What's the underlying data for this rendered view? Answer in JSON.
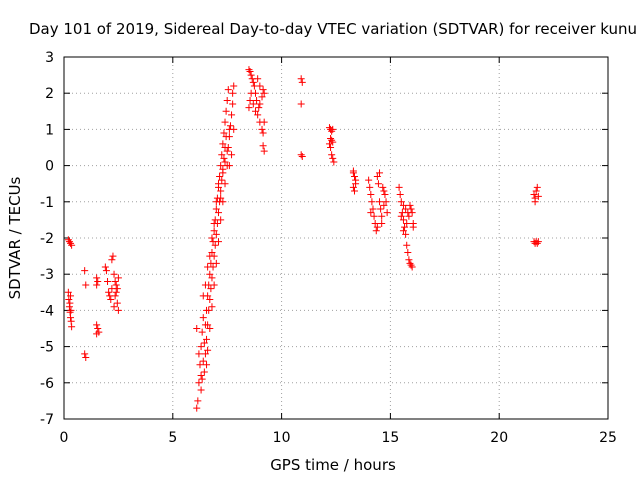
{
  "chart_data": {
    "type": "scatter",
    "title": "Day 101 of 2019, Sidereal Day-to-day VTEC variation (SDTVAR) for receiver kunu",
    "xlabel": "GPS time / hours",
    "ylabel": "SDTVAR / TECUs",
    "xlim": [
      0,
      25
    ],
    "ylim": [
      -7,
      3
    ],
    "xticks": [
      "0",
      "5",
      "10",
      "15",
      "20",
      "25"
    ],
    "yticks": [
      "-7",
      "-6",
      "-5",
      "-4",
      "-3",
      "-2",
      "-1",
      "0",
      "1",
      "2",
      "3"
    ],
    "grid": true,
    "marker": "plus",
    "color": "#ff0000",
    "series": [
      {
        "name": "SDTVAR",
        "points": [
          [
            0.2,
            -2.05
          ],
          [
            0.25,
            -2.1
          ],
          [
            0.3,
            -2.15
          ],
          [
            0.35,
            -2.2
          ],
          [
            0.2,
            -3.5
          ],
          [
            0.22,
            -3.7
          ],
          [
            0.25,
            -3.9
          ],
          [
            0.28,
            -4.05
          ],
          [
            0.3,
            -4.2
          ],
          [
            0.33,
            -4.3
          ],
          [
            0.35,
            -4.45
          ],
          [
            0.3,
            -3.6
          ],
          [
            0.27,
            -3.8
          ],
          [
            0.32,
            -4.0
          ],
          [
            0.95,
            -2.9
          ],
          [
            1.0,
            -3.3
          ],
          [
            0.95,
            -5.2
          ],
          [
            1.0,
            -5.3
          ],
          [
            1.5,
            -3.1
          ],
          [
            1.55,
            -3.2
          ],
          [
            1.5,
            -3.3
          ],
          [
            1.5,
            -4.4
          ],
          [
            1.55,
            -4.5
          ],
          [
            1.6,
            -4.6
          ],
          [
            1.5,
            -4.65
          ],
          [
            1.9,
            -2.8
          ],
          [
            1.95,
            -2.9
          ],
          [
            2.0,
            -3.2
          ],
          [
            2.05,
            -3.5
          ],
          [
            2.1,
            -3.6
          ],
          [
            2.15,
            -3.7
          ],
          [
            2.2,
            -3.4
          ],
          [
            2.2,
            -2.6
          ],
          [
            2.25,
            -2.5
          ],
          [
            2.3,
            -3.0
          ],
          [
            2.35,
            -3.2
          ],
          [
            2.4,
            -3.5
          ],
          [
            2.45,
            -3.8
          ],
          [
            2.5,
            -4.0
          ],
          [
            2.4,
            -3.3
          ],
          [
            2.35,
            -3.6
          ],
          [
            2.45,
            -3.4
          ],
          [
            2.5,
            -3.1
          ],
          [
            2.3,
            -3.9
          ],
          [
            6.1,
            -6.7
          ],
          [
            6.15,
            -6.5
          ],
          [
            6.2,
            -6.0
          ],
          [
            6.25,
            -5.5
          ],
          [
            6.3,
            -5.0
          ],
          [
            6.35,
            -4.6
          ],
          [
            6.4,
            -4.2
          ],
          [
            6.1,
            -4.5
          ],
          [
            6.2,
            -5.2
          ],
          [
            6.3,
            -5.8
          ],
          [
            6.4,
            -5.4
          ],
          [
            6.45,
            -4.9
          ],
          [
            6.5,
            -4.4
          ],
          [
            6.55,
            -4.0
          ],
          [
            6.6,
            -3.6
          ],
          [
            6.65,
            -3.3
          ],
          [
            6.7,
            -3.0
          ],
          [
            6.75,
            -2.7
          ],
          [
            6.8,
            -2.4
          ],
          [
            6.85,
            -2.1
          ],
          [
            6.9,
            -1.8
          ],
          [
            6.95,
            -1.5
          ],
          [
            7.0,
            -1.2
          ],
          [
            7.05,
            -0.9
          ],
          [
            7.1,
            -0.6
          ],
          [
            7.15,
            -0.3
          ],
          [
            7.2,
            0.0
          ],
          [
            7.25,
            0.3
          ],
          [
            7.3,
            0.6
          ],
          [
            7.35,
            0.9
          ],
          [
            7.4,
            1.2
          ],
          [
            7.45,
            1.5
          ],
          [
            7.5,
            1.8
          ],
          [
            7.55,
            2.1
          ],
          [
            6.5,
            -5.2
          ],
          [
            6.55,
            -4.8
          ],
          [
            6.6,
            -4.4
          ],
          [
            6.65,
            -4.0
          ],
          [
            6.7,
            -3.7
          ],
          [
            6.75,
            -3.4
          ],
          [
            6.8,
            -3.1
          ],
          [
            6.85,
            -2.8
          ],
          [
            6.9,
            -2.5
          ],
          [
            6.95,
            -2.2
          ],
          [
            7.0,
            -1.9
          ],
          [
            7.05,
            -1.6
          ],
          [
            7.1,
            -1.3
          ],
          [
            7.15,
            -1.0
          ],
          [
            7.2,
            -0.7
          ],
          [
            7.25,
            -0.4
          ],
          [
            7.3,
            -0.1
          ],
          [
            7.35,
            0.2
          ],
          [
            7.4,
            0.5
          ],
          [
            7.45,
            0.8
          ],
          [
            6.4,
            -3.6
          ],
          [
            6.5,
            -3.3
          ],
          [
            6.6,
            -2.8
          ],
          [
            6.7,
            -2.5
          ],
          [
            6.8,
            -2.0
          ],
          [
            6.9,
            -1.6
          ],
          [
            7.0,
            -1.0
          ],
          [
            7.1,
            -0.5
          ],
          [
            7.2,
            -0.9
          ],
          [
            7.3,
            -0.2
          ],
          [
            7.4,
            0.1
          ],
          [
            7.5,
            0.4
          ],
          [
            7.6,
            0.8
          ],
          [
            7.65,
            1.1
          ],
          [
            7.7,
            1.4
          ],
          [
            7.75,
            1.7
          ],
          [
            7.7,
            0.3
          ],
          [
            7.6,
            0.0
          ],
          [
            7.8,
            1.0
          ],
          [
            7.8,
            2.2
          ],
          [
            7.75,
            2.0
          ],
          [
            6.3,
            -6.2
          ],
          [
            6.35,
            -5.9
          ],
          [
            6.45,
            -5.7
          ],
          [
            6.55,
            -5.5
          ],
          [
            6.6,
            -5.1
          ],
          [
            6.7,
            -4.5
          ],
          [
            6.8,
            -3.9
          ],
          [
            6.9,
            -3.3
          ],
          [
            7.0,
            -2.7
          ],
          [
            7.1,
            -2.1
          ],
          [
            7.2,
            -1.5
          ],
          [
            7.3,
            -1.0
          ],
          [
            7.4,
            -0.5
          ],
          [
            7.5,
            0.0
          ],
          [
            7.55,
            0.5
          ],
          [
            7.6,
            1.0
          ],
          [
            8.5,
            2.65
          ],
          [
            8.55,
            2.6
          ],
          [
            8.6,
            2.5
          ],
          [
            8.65,
            2.4
          ],
          [
            8.7,
            2.3
          ],
          [
            8.75,
            2.2
          ],
          [
            8.8,
            2.0
          ],
          [
            8.85,
            1.8
          ],
          [
            8.5,
            1.6
          ],
          [
            8.55,
            1.8
          ],
          [
            8.6,
            2.0
          ],
          [
            8.7,
            1.7
          ],
          [
            8.8,
            1.5
          ],
          [
            8.9,
            1.4
          ],
          [
            9.0,
            1.2
          ],
          [
            9.1,
            1.0
          ],
          [
            9.15,
            0.9
          ],
          [
            9.0,
            1.7
          ],
          [
            9.1,
            1.9
          ],
          [
            9.15,
            2.1
          ],
          [
            9.2,
            2.0
          ],
          [
            9.2,
            1.2
          ],
          [
            9.2,
            0.4
          ],
          [
            9.15,
            0.55
          ],
          [
            8.9,
            2.4
          ],
          [
            9.0,
            2.2
          ],
          [
            8.95,
            1.6
          ],
          [
            10.9,
            2.4
          ],
          [
            10.95,
            2.3
          ],
          [
            10.9,
            1.7
          ],
          [
            10.9,
            0.3
          ],
          [
            10.95,
            0.25
          ],
          [
            12.2,
            1.05
          ],
          [
            12.25,
            1.0
          ],
          [
            12.3,
            0.95
          ],
          [
            12.35,
            1.0
          ],
          [
            12.2,
            0.6
          ],
          [
            12.25,
            0.5
          ],
          [
            12.3,
            0.3
          ],
          [
            12.35,
            0.2
          ],
          [
            12.4,
            0.1
          ],
          [
            12.3,
            0.7
          ],
          [
            12.35,
            0.65
          ],
          [
            12.25,
            0.75
          ],
          [
            13.3,
            -0.2
          ],
          [
            13.35,
            -0.3
          ],
          [
            13.4,
            -0.4
          ],
          [
            13.3,
            -0.6
          ],
          [
            13.35,
            -0.7
          ],
          [
            13.4,
            -0.5
          ],
          [
            13.3,
            -0.15
          ],
          [
            14.0,
            -0.4
          ],
          [
            14.05,
            -0.6
          ],
          [
            14.1,
            -0.8
          ],
          [
            14.15,
            -1.0
          ],
          [
            14.2,
            -1.2
          ],
          [
            14.25,
            -1.4
          ],
          [
            14.3,
            -1.6
          ],
          [
            14.35,
            -1.8
          ],
          [
            14.4,
            -1.7
          ],
          [
            14.4,
            -0.3
          ],
          [
            14.45,
            -0.5
          ],
          [
            14.5,
            -0.2
          ],
          [
            14.5,
            -1.0
          ],
          [
            14.55,
            -1.2
          ],
          [
            14.6,
            -1.4
          ],
          [
            14.65,
            -0.6
          ],
          [
            14.7,
            -0.7
          ],
          [
            14.75,
            -0.8
          ],
          [
            14.8,
            -1.0
          ],
          [
            14.85,
            -1.3
          ],
          [
            14.7,
            -1.1
          ],
          [
            14.6,
            -1.6
          ],
          [
            14.1,
            -1.3
          ],
          [
            15.4,
            -0.6
          ],
          [
            15.45,
            -0.8
          ],
          [
            15.5,
            -1.0
          ],
          [
            15.55,
            -1.3
          ],
          [
            15.6,
            -1.5
          ],
          [
            15.65,
            -1.7
          ],
          [
            15.7,
            -1.9
          ],
          [
            15.75,
            -2.2
          ],
          [
            15.8,
            -2.4
          ],
          [
            15.85,
            -2.6
          ],
          [
            15.9,
            -2.7
          ],
          [
            15.95,
            -2.75
          ],
          [
            16.0,
            -2.8
          ],
          [
            15.6,
            -1.1
          ],
          [
            15.7,
            -1.2
          ],
          [
            15.8,
            -1.3
          ],
          [
            15.9,
            -1.1
          ],
          [
            15.95,
            -1.2
          ],
          [
            16.0,
            -1.3
          ],
          [
            16.05,
            -1.6
          ],
          [
            16.05,
            -1.7
          ],
          [
            15.85,
            -1.4
          ],
          [
            15.75,
            -1.6
          ],
          [
            15.6,
            -1.8
          ],
          [
            15.5,
            -1.4
          ],
          [
            21.6,
            -0.8
          ],
          [
            21.65,
            -0.9
          ],
          [
            21.7,
            -0.7
          ],
          [
            21.75,
            -0.6
          ],
          [
            21.8,
            -0.85
          ],
          [
            21.6,
            -2.1
          ],
          [
            21.65,
            -2.15
          ],
          [
            21.7,
            -2.1
          ],
          [
            21.75,
            -2.15
          ],
          [
            21.8,
            -2.1
          ],
          [
            21.65,
            -1.0
          ]
        ]
      }
    ]
  }
}
